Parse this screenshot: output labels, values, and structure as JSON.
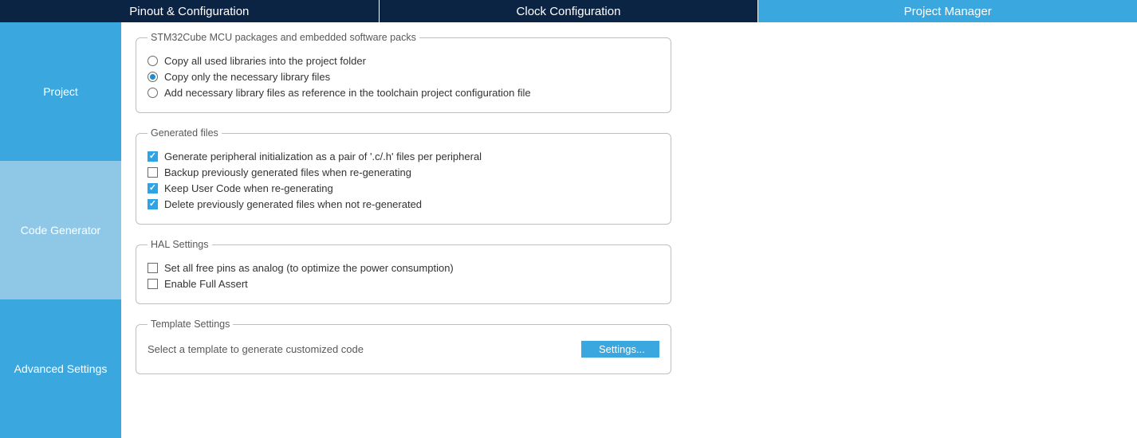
{
  "colors": {
    "tab_dark": "#0c2444",
    "tab_light": "#3aa7df",
    "side_active": "#3aa7df",
    "side_inactive": "#8fc8e6",
    "accent": "#2ea3e6",
    "text": "#333333",
    "legend": "#595959",
    "border": "#bfbfbf"
  },
  "topTabs": {
    "pinout": {
      "label": "Pinout & Configuration",
      "bg": "#0c2444"
    },
    "clock": {
      "label": "Clock Configuration",
      "bg": "#0c2444"
    },
    "project": {
      "label": "Project Manager",
      "bg": "#3aa7df"
    }
  },
  "sideTabs": {
    "project": {
      "label": "Project",
      "bg": "#3aa7df"
    },
    "codegen": {
      "label": "Code Generator",
      "bg": "#8fc8e6"
    },
    "advanced": {
      "label": "Advanced Settings",
      "bg": "#3aa7df"
    }
  },
  "groups": {
    "packages": {
      "legend": "STM32Cube MCU packages and embedded software packs",
      "options": {
        "copyAll": {
          "label": "Copy all used libraries into the project folder",
          "checked": false
        },
        "copyNecessary": {
          "label": "Copy only the necessary library files",
          "checked": true
        },
        "addRef": {
          "label": "Add necessary library files as reference in the toolchain project configuration file",
          "checked": false
        }
      }
    },
    "generated": {
      "legend": "Generated files",
      "options": {
        "pair": {
          "label": "Generate peripheral initialization as a pair of '.c/.h' files per peripheral",
          "checked": true
        },
        "backup": {
          "label": "Backup previously generated files when re-generating",
          "checked": false
        },
        "keepUser": {
          "label": "Keep User Code when re-generating",
          "checked": true
        },
        "deletePrev": {
          "label": "Delete previously generated files when not re-generated",
          "checked": true
        }
      }
    },
    "hal": {
      "legend": "HAL Settings",
      "options": {
        "analog": {
          "label": "Set all free pins as analog (to optimize the power consumption)",
          "checked": false
        },
        "assert": {
          "label": "Enable Full Assert",
          "checked": false
        }
      }
    },
    "template": {
      "legend": "Template Settings",
      "text": "Select a template to generate customized code",
      "button": "Settings..."
    }
  }
}
